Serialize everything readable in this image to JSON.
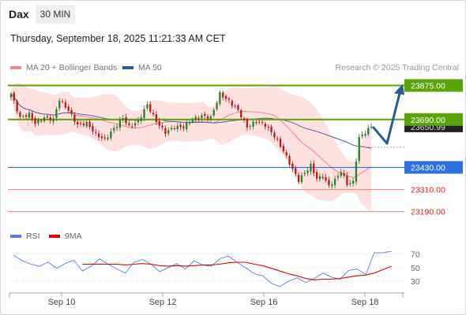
{
  "header": {
    "symbol": "Dax",
    "timeframe_label": "30 MIN",
    "timestamp": "Thursday, September 18, 2025 11:21:33 AM CET"
  },
  "legend": {
    "ma20_label": "MA 20 + Bollinger Bands",
    "ma50_label": "MA 50",
    "credit": "Research © 2025 Trading Central"
  },
  "rsi_legend": {
    "rsi_label": "RSI",
    "ma_label": "9MA"
  },
  "colors": {
    "resistance": "#5ba30a",
    "support": "#2f6fe0",
    "target": "#f08080",
    "ma20": "#f07a7a",
    "ma50": "#3a5a99",
    "band_fill": "#fde0e0",
    "bull": "#2e7d32",
    "bear": "#b71c1c",
    "rsi": "#5b7fd6",
    "rsi_ma": "#e00000",
    "arrow": "#2e5a96"
  },
  "chart_data": [
    {
      "type": "candlestick",
      "title": "",
      "x_labels": [
        "Sep 10",
        "Sep 12",
        "Sep 16",
        "Sep 18"
      ],
      "ylim": [
        23150,
        23920
      ],
      "levels": [
        {
          "label": "23875.00",
          "value": 23875,
          "kind": "resistance"
        },
        {
          "label": "23690.00",
          "value": 23690,
          "kind": "resistance"
        },
        {
          "label": "23430.00",
          "value": 23430,
          "kind": "support"
        },
        {
          "label": "23310.00",
          "value": 23310,
          "kind": "target"
        },
        {
          "label": "23190.00",
          "value": 23190,
          "kind": "target"
        }
      ],
      "current_price_label": "23650.99",
      "current_price": 23651,
      "forecast_path": [
        23651,
        23560,
        23875
      ],
      "anchors": [
        {
          "i": 0,
          "v": 23830
        },
        {
          "i": 3,
          "v": 23700
        },
        {
          "i": 6,
          "v": 23720
        },
        {
          "i": 8,
          "v": 23670
        },
        {
          "i": 11,
          "v": 23700
        },
        {
          "i": 14,
          "v": 23690
        },
        {
          "i": 16,
          "v": 23800
        },
        {
          "i": 19,
          "v": 23740
        },
        {
          "i": 22,
          "v": 23660
        },
        {
          "i": 25,
          "v": 23670
        },
        {
          "i": 28,
          "v": 23610
        },
        {
          "i": 31,
          "v": 23580
        },
        {
          "i": 34,
          "v": 23640
        },
        {
          "i": 37,
          "v": 23700
        },
        {
          "i": 39,
          "v": 23650
        },
        {
          "i": 42,
          "v": 23680
        },
        {
          "i": 45,
          "v": 23770
        },
        {
          "i": 48,
          "v": 23680
        },
        {
          "i": 51,
          "v": 23620
        },
        {
          "i": 54,
          "v": 23650
        },
        {
          "i": 57,
          "v": 23650
        },
        {
          "i": 60,
          "v": 23690
        },
        {
          "i": 63,
          "v": 23710
        },
        {
          "i": 66,
          "v": 23700
        },
        {
          "i": 69,
          "v": 23830
        },
        {
          "i": 72,
          "v": 23790
        },
        {
          "i": 75,
          "v": 23740
        },
        {
          "i": 78,
          "v": 23650
        },
        {
          "i": 81,
          "v": 23680
        },
        {
          "i": 84,
          "v": 23660
        },
        {
          "i": 87,
          "v": 23600
        },
        {
          "i": 90,
          "v": 23520
        },
        {
          "i": 93,
          "v": 23420
        },
        {
          "i": 95,
          "v": 23360
        },
        {
          "i": 97,
          "v": 23400
        },
        {
          "i": 99,
          "v": 23440
        },
        {
          "i": 101,
          "v": 23370
        },
        {
          "i": 103,
          "v": 23380
        },
        {
          "i": 105,
          "v": 23330
        },
        {
          "i": 107,
          "v": 23360
        },
        {
          "i": 109,
          "v": 23410
        },
        {
          "i": 111,
          "v": 23340
        },
        {
          "i": 113,
          "v": 23350
        },
        {
          "i": 115,
          "v": 23590
        },
        {
          "i": 117,
          "v": 23620
        },
        {
          "i": 119,
          "v": 23651
        }
      ]
    },
    {
      "type": "line",
      "title": "",
      "ylim": [
        15,
        80
      ],
      "y_ticks": [
        70,
        50,
        30
      ],
      "series": [
        {
          "name": "RSI",
          "values": [
            68,
            60,
            55,
            52,
            58,
            49,
            56,
            61,
            45,
            52,
            63,
            55,
            48,
            42,
            58,
            62,
            55,
            44,
            50,
            56,
            48,
            60,
            54,
            52,
            63,
            67,
            58,
            50,
            41,
            38,
            27,
            22,
            30,
            35,
            28,
            34,
            42,
            36,
            33,
            46,
            48,
            40,
            72,
            72,
            74
          ]
        },
        {
          "name": "9MA",
          "values": [
            null,
            null,
            null,
            null,
            null,
            null,
            null,
            null,
            55,
            55,
            55,
            55,
            55,
            54,
            55,
            56,
            55,
            53,
            52,
            53,
            52,
            53,
            54,
            54,
            55,
            57,
            58,
            58,
            55,
            53,
            49,
            45,
            41,
            38,
            34,
            32,
            33,
            33,
            34,
            36,
            38,
            39,
            42,
            47,
            52
          ]
        }
      ]
    }
  ]
}
